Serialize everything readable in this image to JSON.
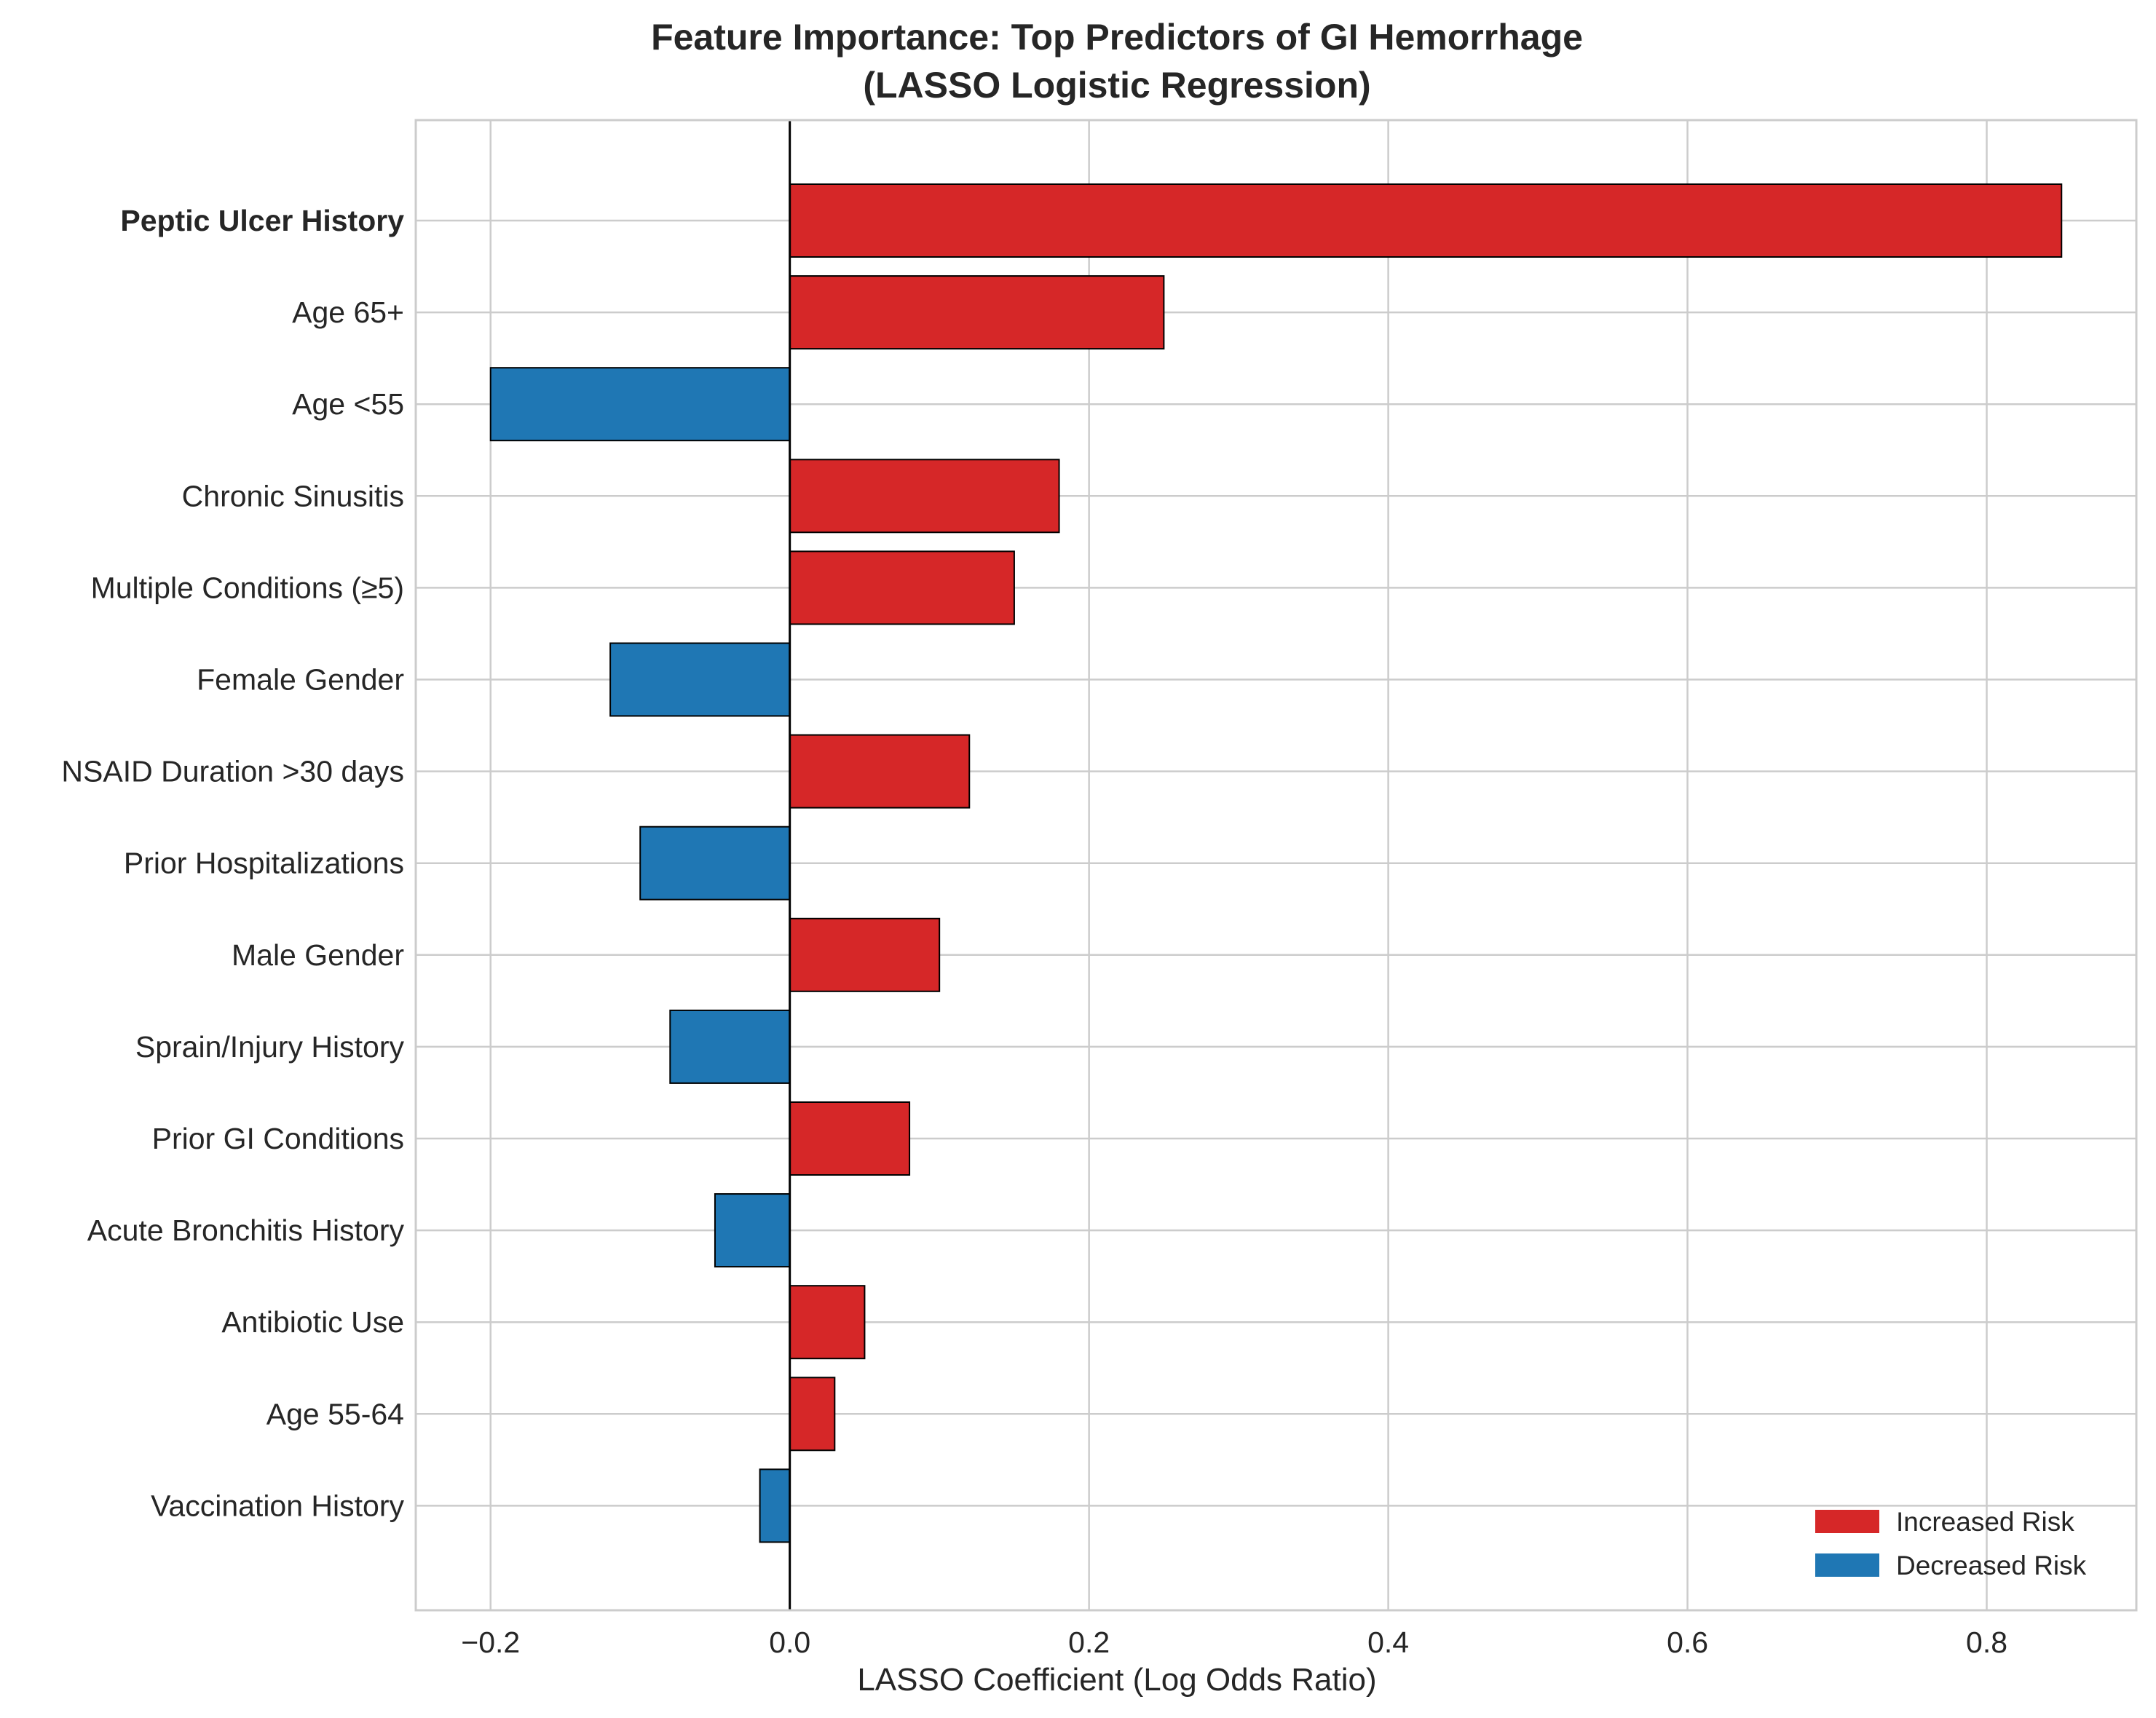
{
  "chart_data": {
    "type": "bar",
    "orientation": "horizontal",
    "title": "Feature Importance: Top Predictors of GI Hemorrhage",
    "subtitle": "(LASSO Logistic Regression)",
    "xlabel": "LASSO Coefficient (Log Odds Ratio)",
    "ylabel": "",
    "xlim": [
      -0.25,
      0.9
    ],
    "xticks": [
      -0.2,
      0.0,
      0.2,
      0.4,
      0.6,
      0.8
    ],
    "xtick_labels": [
      "−0.2",
      "0.0",
      "0.2",
      "0.4",
      "0.6",
      "0.8"
    ],
    "grid": true,
    "legend_position": "bottom-right",
    "highlighted_category": "Peptic Ulcer History",
    "colors": {
      "increased": "#d62728",
      "decreased": "#1f77b4",
      "highlight_label": "#d62728",
      "grid": "#cccccc",
      "text": "#262626",
      "bar_edge": "#000000"
    },
    "categories": [
      "Peptic Ulcer History",
      "Age 65+",
      "Age <55",
      "Chronic Sinusitis",
      "Multiple Conditions (≥5)",
      "Female Gender",
      "NSAID Duration >30 days",
      "Prior Hospitalizations",
      "Male Gender",
      "Sprain/Injury History",
      "Prior GI Conditions",
      "Acute Bronchitis History",
      "Antibiotic Use",
      "Age 55-64",
      "Vaccination History"
    ],
    "values": [
      0.85,
      0.25,
      -0.2,
      0.18,
      0.15,
      -0.12,
      0.12,
      -0.1,
      0.1,
      -0.08,
      0.08,
      -0.05,
      0.05,
      0.03,
      -0.02
    ],
    "legend": [
      {
        "label": "Increased Risk",
        "color": "#d62728"
      },
      {
        "label": "Decreased Risk",
        "color": "#1f77b4"
      }
    ]
  }
}
